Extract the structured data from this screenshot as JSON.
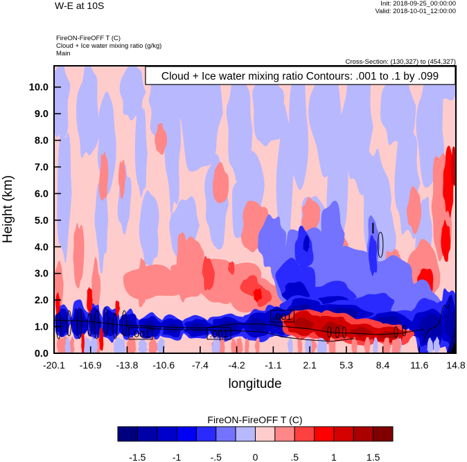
{
  "header": {
    "main_title": "W-E at 10S",
    "init": "Init: 2018-09-25_00:00:00",
    "valid": "Valid: 2018-10-01_12:00:00",
    "fields": [
      "FireON-FireOFF T   (C)",
      "Cloud + Ice water mixing ratio   (g/kg)",
      "Main"
    ],
    "cross_section": "Cross-Section: (130,327) to (454,327)"
  },
  "chart_data": {
    "type": "heatmap",
    "title": "W-E at 10S",
    "filled_field": "FireON-FireOFF T (C)",
    "contour_field": "Cloud + Ice water mixing ratio (g/kg)",
    "contour_info": "Cloud + Ice water mixing ratio Contours: .001 to .1 by .099",
    "contour_levels": [
      0.001,
      0.1
    ],
    "contour_labels": [
      ".001",
      ".001",
      ".001"
    ],
    "xlabel": "longitude",
    "ylabel": "Height (km)",
    "xlim": [
      -20.1,
      14.8
    ],
    "ylim": [
      0.0,
      10.8
    ],
    "x_ticks": [
      "-20.1",
      "-16.9",
      "-13.8",
      "-10.6",
      "-7.4",
      "-4.2",
      "-1.1",
      "2.1",
      "5.3",
      "8.4",
      "11.6",
      "14.8"
    ],
    "y_ticks": [
      "0.0",
      "1.0",
      "2.0",
      "3.0",
      "4.0",
      "5.0",
      "6.0",
      "7.0",
      "8.0",
      "9.0",
      "10.0"
    ],
    "y_tick_values": [
      0,
      1,
      2,
      3,
      4,
      5,
      6,
      7,
      8,
      9,
      10
    ],
    "colorbar": {
      "title": "FireON-FireOFF T  (C)",
      "levels": [
        -1.5,
        -1.25,
        -1.0,
        -0.75,
        -0.5,
        -0.25,
        0,
        0.25,
        0.5,
        0.75,
        1.0,
        1.25,
        1.5
      ],
      "labels": [
        "-1.5",
        "-1",
        "-.5",
        "0",
        ".5",
        "1",
        "1.5"
      ],
      "label_levels": [
        -1.5,
        -1.0,
        -0.5,
        0,
        0.5,
        1.0,
        1.5
      ],
      "colors": [
        "#00007f",
        "#0000a8",
        "#0000cc",
        "#0000f5",
        "#2a2aff",
        "#7373ff",
        "#b8b8ff",
        "#ffcccc",
        "#ff8787",
        "#ff4040",
        "#ff0000",
        "#d40000",
        "#aa0000",
        "#800000"
      ]
    },
    "features": [
      {
        "name": "low-level-cooling-band",
        "x_range": [
          -20.1,
          14.8
        ],
        "z_range": [
          0.6,
          1.8
        ],
        "sign": "negative",
        "magnitude": 1.5
      },
      {
        "name": "low-level-warming-band",
        "x_range": [
          0.5,
          11.0
        ],
        "z_range": [
          0.3,
          1.4
        ],
        "sign": "positive",
        "magnitude": 1.5
      },
      {
        "name": "elevated-warm-layer",
        "x_range": [
          -14.0,
          3.0
        ],
        "z_range": [
          1.5,
          3.2
        ],
        "sign": "positive",
        "magnitude": 1.0
      },
      {
        "name": "mid-level-cool-layer",
        "x_range": [
          -3.0,
          14.0
        ],
        "z_range": [
          1.2,
          4.5
        ],
        "sign": "negative",
        "magnitude": 1.2
      },
      {
        "name": "upper-level-noise",
        "x_range": [
          -20.1,
          14.8
        ],
        "z_range": [
          4.5,
          10.8
        ],
        "sign": "mixed",
        "magnitude": 0.5
      }
    ]
  }
}
